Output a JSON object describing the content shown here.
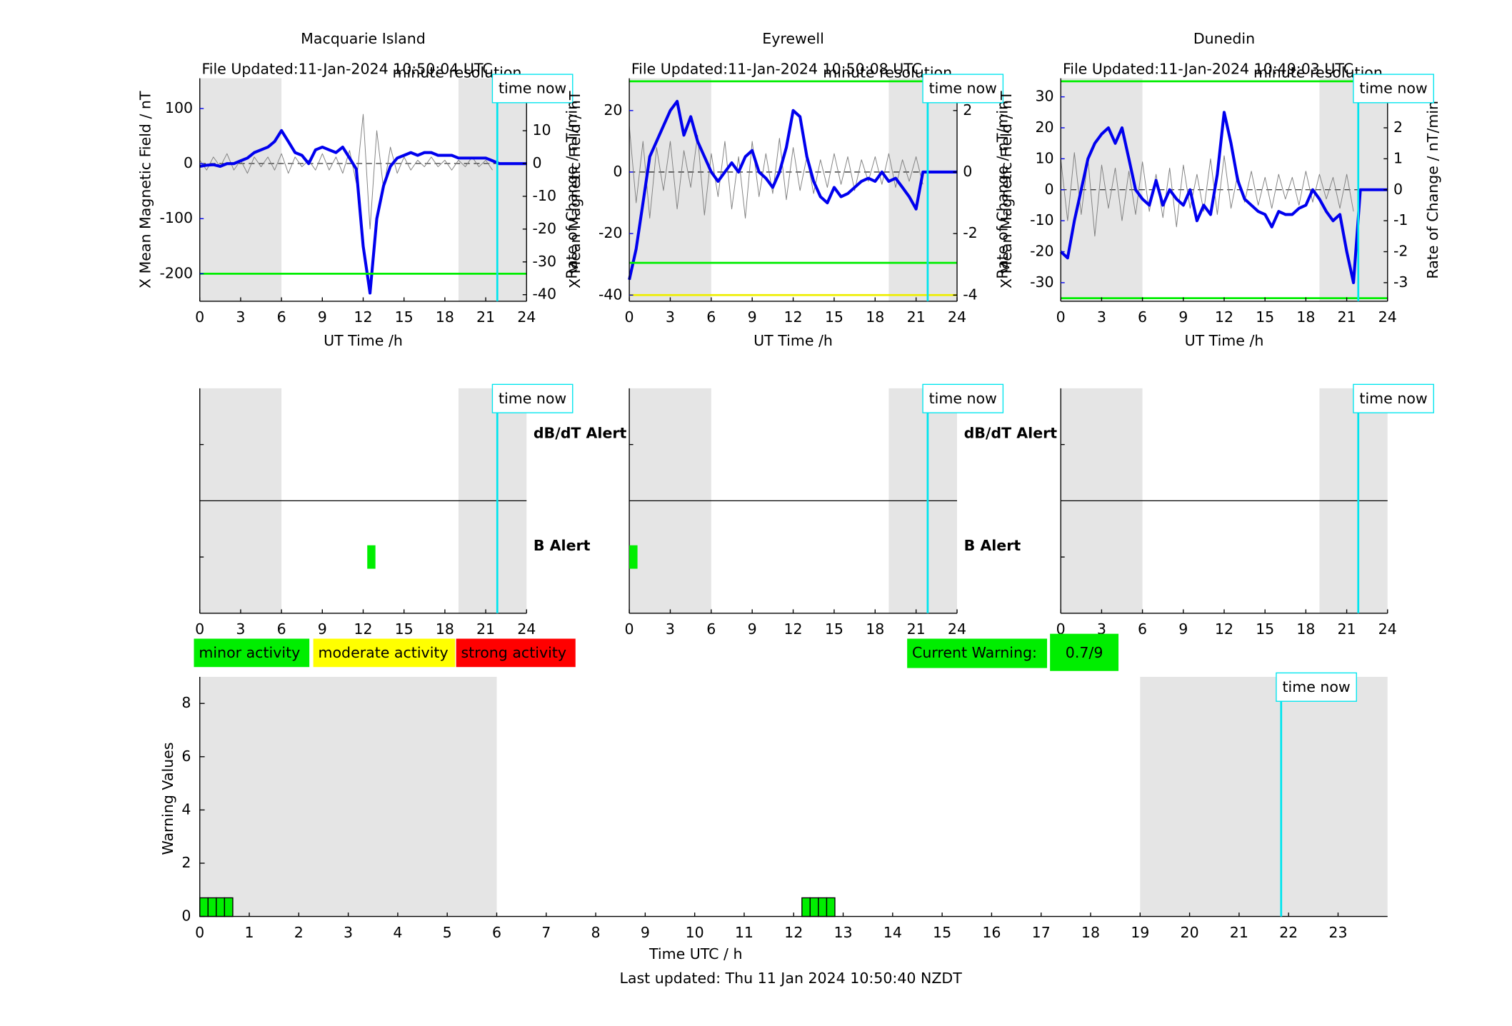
{
  "chart_data": [
    {
      "type": "dual_axis_line",
      "title": "Macquarie Island",
      "file_updated": "File Updated:11-Jan-2024 10:50:04 UTC",
      "resolution": "minute resolution",
      "time_now": 21.85,
      "time_now_label": "time now",
      "xlabel": "UT Time /h",
      "ylabel": "X Mean Magnetic Field / nT",
      "y2label": "Rate of Change / nT/min",
      "xlim": [
        0,
        24
      ],
      "xticks": [
        0,
        3,
        6,
        9,
        12,
        15,
        18,
        21,
        24
      ],
      "ylim": [
        -250,
        155
      ],
      "yticks": [
        -200,
        -100,
        0,
        100
      ],
      "y2lim": [
        -42,
        26
      ],
      "y2ticks": [
        -40,
        -30,
        -20,
        -10,
        0,
        10,
        20
      ],
      "shaded_spans": [
        [
          0,
          6
        ],
        [
          19,
          24
        ]
      ],
      "thresholds": [
        {
          "value": -200,
          "color": "#00ee00"
        }
      ],
      "x": [
        0,
        0.5,
        1,
        1.5,
        2,
        2.5,
        3,
        3.5,
        4,
        4.5,
        5,
        5.5,
        6,
        6.5,
        7,
        7.5,
        8,
        8.5,
        9,
        9.5,
        10,
        10.5,
        11,
        11.5,
        12,
        12.5,
        13,
        13.5,
        14,
        14.5,
        15,
        15.5,
        16,
        16.5,
        17,
        17.5,
        18,
        18.5,
        19,
        19.5,
        20,
        20.5,
        21,
        21.5,
        22,
        22.5,
        23,
        23.5,
        24
      ],
      "series": [
        {
          "color": "#808080",
          "axis": "y2",
          "values": [
            1,
            -2,
            2,
            -1,
            3,
            -2,
            1,
            -3,
            2,
            -1,
            2,
            -2,
            3,
            -3,
            2,
            -1,
            1,
            -2,
            3,
            -2,
            2,
            -3,
            4,
            -6,
            15,
            -20,
            10,
            -8,
            5,
            -3,
            2,
            -2,
            1,
            -1,
            2,
            -1,
            1,
            -2,
            1,
            -1,
            2,
            -1,
            1,
            -2,
            null,
            null,
            null,
            null,
            null
          ]
        },
        {
          "color": "#0000ee",
          "axis": "y",
          "values": [
            -5,
            -3,
            -2,
            -5,
            0,
            0,
            5,
            10,
            20,
            25,
            30,
            40,
            60,
            40,
            20,
            15,
            0,
            25,
            30,
            25,
            20,
            30,
            10,
            -10,
            -150,
            -235,
            -100,
            -40,
            -5,
            10,
            15,
            20,
            15,
            20,
            20,
            15,
            15,
            15,
            10,
            10,
            10,
            10,
            10,
            5,
            0,
            0,
            0,
            0,
            0
          ]
        }
      ]
    },
    {
      "type": "dual_axis_line",
      "title": "Eyrewell",
      "file_updated": "File Updated:11-Jan-2024 10:50:08 UTC",
      "resolution": "minute resolution",
      "time_now": 21.85,
      "time_now_label": "time now",
      "xlabel": "UT Time /h",
      "ylabel": "X Mean Magnetic Field / nT",
      "y2label": "Rate of Change / nT/min",
      "xlim": [
        0,
        24
      ],
      "xticks": [
        0,
        3,
        6,
        9,
        12,
        15,
        18,
        21,
        24
      ],
      "ylim": [
        -42,
        30.5
      ],
      "yticks": [
        -40,
        -20,
        0,
        20
      ],
      "y2lim": [
        -4.2,
        3.05
      ],
      "y2ticks": [
        -4,
        -2,
        0,
        2
      ],
      "shaded_spans": [
        [
          0,
          6
        ],
        [
          19,
          24
        ]
      ],
      "thresholds": [
        {
          "value": 29.5,
          "color": "#00ee00"
        },
        {
          "value": -29.5,
          "color": "#00ee00"
        },
        {
          "value": -40,
          "color": "#eeee00"
        }
      ],
      "x": [
        0,
        0.5,
        1,
        1.5,
        2,
        2.5,
        3,
        3.5,
        4,
        4.5,
        5,
        5.5,
        6,
        6.5,
        7,
        7.5,
        8,
        8.5,
        9,
        9.5,
        10,
        10.5,
        11,
        11.5,
        12,
        12.5,
        13,
        13.5,
        14,
        14.5,
        15,
        15.5,
        16,
        16.5,
        17,
        17.5,
        18,
        18.5,
        19,
        19.5,
        20,
        20.5,
        21,
        21.5,
        22,
        22.5,
        23,
        23.5,
        24
      ],
      "series": [
        {
          "color": "#808080",
          "axis": "y2",
          "values": [
            1.5,
            -1,
            1,
            -1.5,
            0.8,
            -0.6,
            1,
            -1.2,
            0.7,
            -0.5,
            1.2,
            -1.4,
            0.6,
            -0.8,
            1,
            -1.2,
            0.5,
            -1.5,
            1,
            -0.8,
            0.6,
            -0.7,
            1.1,
            -0.9,
            0.8,
            -0.6,
            0.5,
            -0.7,
            0.4,
            -0.5,
            0.6,
            -0.4,
            0.5,
            -0.6,
            0.4,
            -0.3,
            0.5,
            -0.4,
            0.6,
            -0.5,
            0.4,
            -0.3,
            0.5,
            -0.4,
            null,
            null,
            null,
            null,
            null
          ]
        },
        {
          "color": "#0000ee",
          "axis": "y",
          "values": [
            -35,
            -25,
            -10,
            5,
            10,
            15,
            20,
            23,
            12,
            18,
            10,
            5,
            0,
            -3,
            0,
            3,
            0,
            5,
            7,
            0,
            -2,
            -5,
            0,
            8,
            20,
            18,
            5,
            -3,
            -8,
            -10,
            -5,
            -8,
            -7,
            -5,
            -3,
            -2,
            -3,
            0,
            -3,
            -2,
            -5,
            -8,
            -12,
            0,
            0,
            0,
            0,
            0,
            0
          ]
        }
      ]
    },
    {
      "type": "dual_axis_line",
      "title": "Dunedin",
      "file_updated": "File Updated:11-Jan-2024 10:49:03 UTC",
      "resolution": "minute resolution",
      "time_now": 21.85,
      "time_now_label": "time now",
      "xlabel": "UT Time /h",
      "ylabel": "X Mean Magnetic Field / nT",
      "y2label": "Rate of Change / nT/min",
      "xlim": [
        0,
        24
      ],
      "xticks": [
        0,
        3,
        6,
        9,
        12,
        15,
        18,
        21,
        24
      ],
      "ylim": [
        -36,
        36
      ],
      "yticks": [
        -30,
        -20,
        -10,
        0,
        10,
        20,
        30
      ],
      "y2lim": [
        -3.6,
        3.6
      ],
      "y2ticks": [
        -3,
        -2,
        -1,
        0,
        1,
        2,
        3
      ],
      "shaded_spans": [
        [
          0,
          6
        ],
        [
          19,
          24
        ]
      ],
      "thresholds": [
        {
          "value": 35,
          "color": "#00ee00"
        },
        {
          "value": -35,
          "color": "#00ee00"
        }
      ],
      "x": [
        0,
        0.5,
        1,
        1.5,
        2,
        2.5,
        3,
        3.5,
        4,
        4.5,
        5,
        5.5,
        6,
        6.5,
        7,
        7.5,
        8,
        8.5,
        9,
        9.5,
        10,
        10.5,
        11,
        11.5,
        12,
        12.5,
        13,
        13.5,
        14,
        14.5,
        15,
        15.5,
        16,
        16.5,
        17,
        17.5,
        18,
        18.5,
        19,
        19.5,
        20,
        20.5,
        21,
        21.5,
        22,
        22.5,
        23,
        23.5,
        24
      ],
      "series": [
        {
          "color": "#808080",
          "axis": "y2",
          "values": [
            1,
            -1,
            1.2,
            -0.8,
            1,
            -1.5,
            0.8,
            -0.6,
            0.7,
            -1,
            0.6,
            -0.8,
            0.9,
            -0.7,
            0.5,
            -0.9,
            0.7,
            -1.2,
            0.8,
            -0.6,
            0.5,
            -0.7,
            1,
            -0.8,
            1.1,
            -0.6,
            0.5,
            -0.4,
            0.6,
            -0.5,
            0.4,
            -0.6,
            0.5,
            -0.3,
            0.4,
            -0.5,
            0.6,
            -0.4,
            0.5,
            -0.3,
            0.4,
            -0.6,
            0.5,
            -0.7,
            null,
            null,
            null,
            null,
            null
          ]
        },
        {
          "color": "#0000ee",
          "axis": "y",
          "values": [
            -20,
            -22,
            -10,
            0,
            10,
            15,
            18,
            20,
            15,
            20,
            10,
            0,
            -3,
            -5,
            3,
            -5,
            0,
            -3,
            -5,
            0,
            -10,
            -5,
            -8,
            5,
            25,
            15,
            3,
            -3,
            -5,
            -7,
            -8,
            -12,
            -7,
            -8,
            -8,
            -6,
            -5,
            0,
            -3,
            -7,
            -10,
            -8,
            -20,
            -30,
            0,
            0,
            0,
            0,
            0
          ]
        }
      ]
    },
    {
      "type": "alert_timeline",
      "time_now": 21.85,
      "time_now_label": "time now",
      "xlim": [
        0,
        24
      ],
      "xticks": [
        0,
        3,
        6,
        9,
        12,
        15,
        18,
        21,
        24
      ],
      "shaded_spans": [
        [
          0,
          6
        ],
        [
          19,
          24
        ]
      ],
      "lane_labels": [
        "dB/dT Alert",
        "B Alert"
      ],
      "b_alert_spans": [
        [
          12.3,
          12.9
        ]
      ],
      "alert_color": "#00ee00"
    },
    {
      "type": "alert_timeline",
      "time_now": 21.85,
      "time_now_label": "time now",
      "xlim": [
        0,
        24
      ],
      "xticks": [
        0,
        3,
        6,
        9,
        12,
        15,
        18,
        21,
        24
      ],
      "shaded_spans": [
        [
          0,
          6
        ],
        [
          19,
          24
        ]
      ],
      "lane_labels": [
        "dB/dT Alert",
        "B Alert"
      ],
      "b_alert_spans": [
        [
          0,
          0.6
        ]
      ],
      "alert_color": "#00ee00"
    },
    {
      "type": "alert_timeline",
      "time_now": 21.85,
      "time_now_label": "time now",
      "xlim": [
        0,
        24
      ],
      "xticks": [
        0,
        3,
        6,
        9,
        12,
        15,
        18,
        21,
        24
      ],
      "shaded_spans": [
        [
          0,
          6
        ],
        [
          19,
          24
        ]
      ],
      "alert_color": "#00ee00"
    },
    {
      "type": "bar",
      "xlabel": "Time UTC / h",
      "ylabel": "Warning Values",
      "xlim": [
        0,
        24
      ],
      "xticks": [
        0,
        1,
        2,
        3,
        4,
        5,
        6,
        7,
        8,
        9,
        10,
        11,
        12,
        13,
        14,
        15,
        16,
        17,
        18,
        19,
        20,
        21,
        22,
        23
      ],
      "ylim": [
        0,
        9
      ],
      "yticks": [
        0,
        2,
        4,
        6,
        8
      ],
      "shaded_spans": [
        [
          0,
          6
        ],
        [
          19,
          24
        ]
      ],
      "time_now": 21.85,
      "time_now_label": "time now",
      "color": "#00ee00",
      "x_start": [
        0,
        0.167,
        0.333,
        0.5,
        12.167,
        12.333,
        12.5,
        12.667
      ],
      "x_end": [
        0.167,
        0.333,
        0.5,
        0.667,
        12.333,
        12.5,
        12.667,
        12.833
      ],
      "values": [
        0.7,
        0.7,
        0.7,
        0.7,
        0.7,
        0.7,
        0.7,
        0.7
      ],
      "legend": [
        {
          "label": "minor activity",
          "color": "#00ee00"
        },
        {
          "label": "moderate activity",
          "color": "#ffff00"
        },
        {
          "label": "strong activity",
          "color": "#ff0000"
        }
      ],
      "current_warning_label": "Current Warning:",
      "current_warning": "0.7/9",
      "footer": "Last updated: Thu 11 Jan 2024 10:50:40 NZDT"
    }
  ]
}
